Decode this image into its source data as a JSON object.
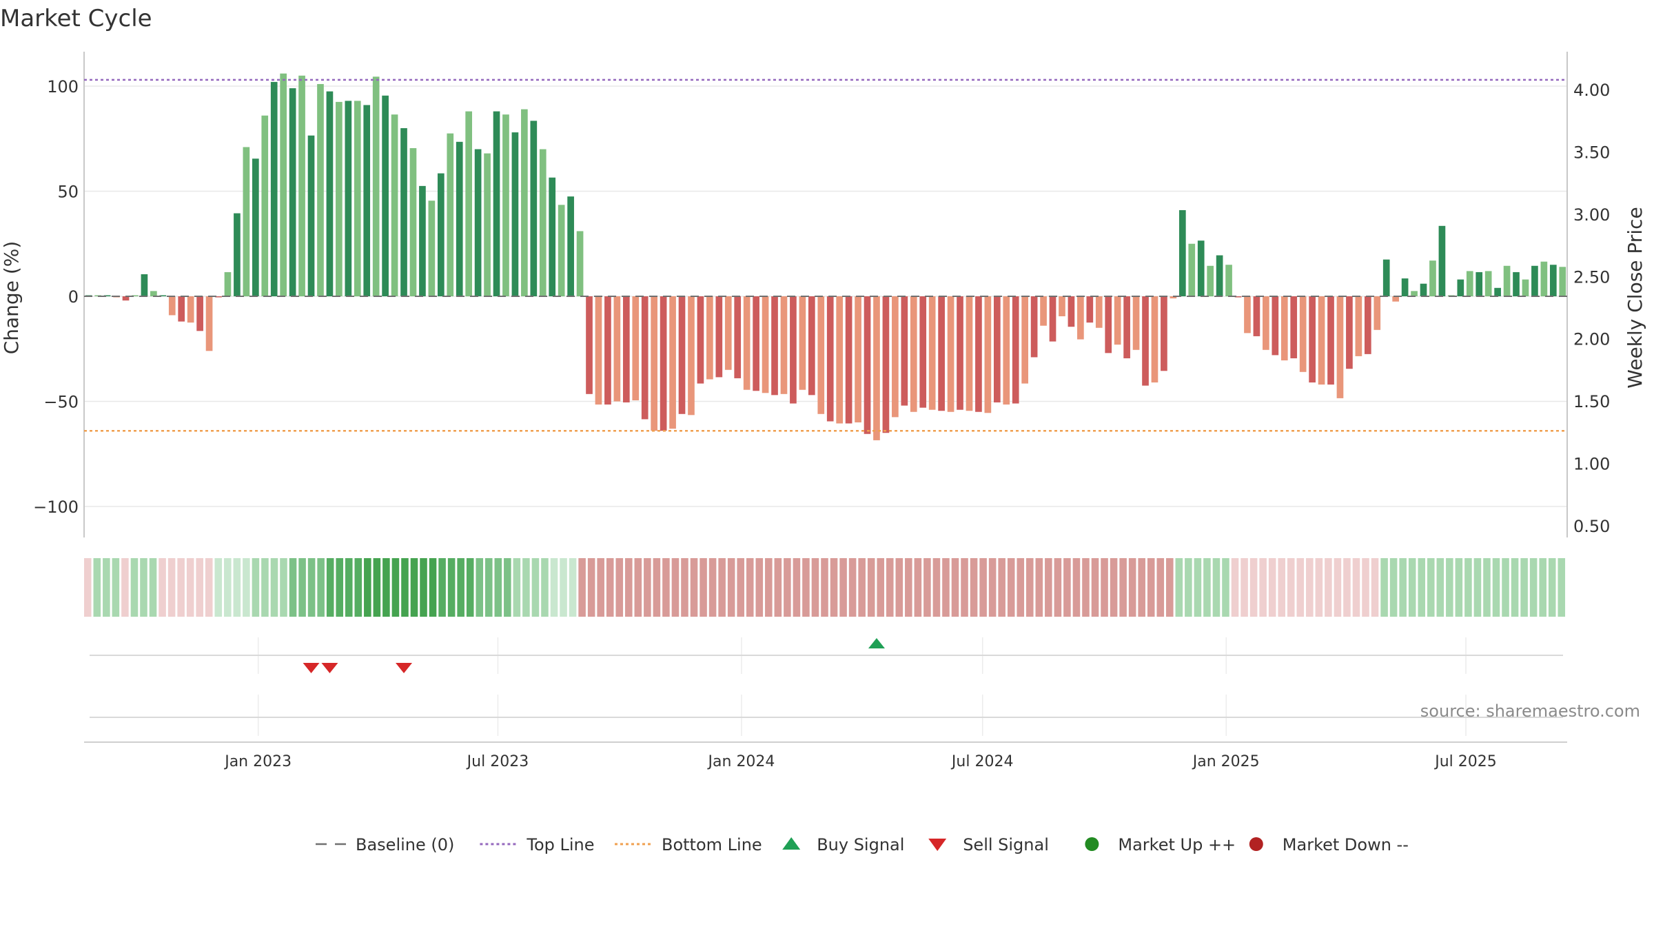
{
  "title": "Market Cycle",
  "source_text": "source: sharemaestro.com",
  "colors": {
    "top_line": "#9467bd",
    "bottom_line": "#f0a050",
    "up_strong": "#2e8b57",
    "up_light": "#80c080",
    "down_strong": "#cd5c5c",
    "down_light": "#e9967a",
    "buy": "#1fa055",
    "sell": "#d62728",
    "market_up": "#228b22",
    "market_down": "#b22222",
    "baseline": "#707070"
  },
  "chart_data": {
    "type": "bar",
    "title": "Market Cycle",
    "ylabel_left": "Change (%)",
    "ylabel_right": "Weekly Close Price",
    "ylim_left": [
      -115,
      115
    ],
    "ylim_right": [
      0.45,
      4.2
    ],
    "yticks_left": [
      "100",
      "50",
      "0",
      "−50",
      "−100"
    ],
    "yticks_left_values": [
      100,
      50,
      0,
      -50,
      -100
    ],
    "yticks_right": [
      "4.00",
      "3.50",
      "3.00",
      "2.50",
      "2.00",
      "1.50",
      "1.00",
      "0.50"
    ],
    "yticks_right_values": [
      4.0,
      3.5,
      3.0,
      2.5,
      2.0,
      1.5,
      1.0,
      0.5
    ],
    "xticks": [
      "Jan 2023",
      "Jul 2023",
      "Jan 2024",
      "Jul 2024",
      "Jan 2025",
      "Jul 2025"
    ],
    "xticks_dates": [
      "2023-01-01",
      "2023-07-01",
      "2024-01-01",
      "2024-07-01",
      "2025-01-01",
      "2025-07-01"
    ],
    "start_date": "2022-08-26",
    "week_step_days": 7,
    "top_line": 103,
    "bottom_line": -64,
    "grid": true,
    "legend_position": "bottom-center",
    "legend": [
      {
        "label": "Baseline (0)",
        "marker": "dash"
      },
      {
        "label": "Top Line",
        "marker": "dotted-purple"
      },
      {
        "label": "Bottom Line",
        "marker": "dotted-orange"
      },
      {
        "label": "Buy Signal",
        "marker": "triangle-up"
      },
      {
        "label": "Sell Signal",
        "marker": "triangle-down"
      },
      {
        "label": "Market Up ++",
        "marker": "circle-green"
      },
      {
        "label": "Market Down --",
        "marker": "circle-red"
      }
    ],
    "weekly_change": [
      0.5,
      0.5,
      0.5,
      -0.5,
      -2,
      0.5,
      10.5,
      2.5,
      0.5,
      -9,
      -12,
      -12.5,
      -16.5,
      -26,
      -0.5,
      11.5,
      39.5,
      71,
      65.5,
      86,
      102,
      106,
      99,
      105,
      76.5,
      101,
      97.5,
      92.5,
      93,
      93,
      91,
      104.5,
      95.5,
      86.5,
      80,
      70.5,
      52.5,
      45.5,
      58.5,
      77.5,
      73.5,
      88,
      70,
      68,
      88,
      86.5,
      78,
      89,
      83.5,
      70,
      56.5,
      43.5,
      47.5,
      31,
      -46.5,
      -51.5,
      -51.5,
      -50,
      -50.5,
      -49.5,
      -58.5,
      -64,
      -64,
      -63,
      -56,
      -56.5,
      -41.5,
      -39.5,
      -38.5,
      -35,
      -39,
      -44.5,
      -45,
      -46,
      -47,
      -46.5,
      -51,
      -44.5,
      -47,
      -56,
      -59.5,
      -60.5,
      -60.5,
      -60,
      -65.5,
      -68.5,
      -65,
      -57.5,
      -52,
      -55,
      -53,
      -54,
      -54.5,
      -55,
      -54,
      -54.5,
      -55,
      -55.5,
      -50.5,
      -51.5,
      -51,
      -41.5,
      -29,
      -14,
      -21.5,
      -9.5,
      -14.5,
      -20.5,
      -12.5,
      -15,
      -27,
      -23,
      -29.5,
      -25.5,
      -42.5,
      -41,
      -35.5,
      -1,
      41,
      25,
      26.5,
      14.5,
      19.5,
      15,
      -0.5,
      -17.5,
      -19,
      -25.5,
      -28,
      -30.5,
      -29.5,
      -36,
      -41,
      -42,
      -42,
      -48.5,
      -34.5,
      -28.5,
      -27.5,
      -16,
      17.5,
      -2.5,
      8.5,
      2.5,
      6,
      17,
      33.5,
      0.5,
      8,
      12,
      11.5,
      12,
      4,
      14.5,
      11.5,
      8,
      14.5,
      16.5,
      15,
      14
    ],
    "status_strip": [
      {
        "state": "down",
        "weeks": 1
      },
      {
        "state": "up",
        "weeks": 3
      },
      {
        "state": "down",
        "weeks": 1
      },
      {
        "state": "up",
        "weeks": 3
      },
      {
        "state": "down",
        "weeks": 6
      },
      {
        "state": "up",
        "weeks": 39
      },
      {
        "state": "down",
        "weeks": 64
      },
      {
        "state": "up",
        "weeks": 6
      },
      {
        "state": "down",
        "weeks": 16
      },
      {
        "state": "up",
        "weeks": 7
      },
      {
        "state": "up",
        "weeks": 13
      }
    ],
    "buy_signals": [
      {
        "x": "2024-04-12"
      }
    ],
    "sell_signals": [
      {
        "x": "2023-02-10"
      },
      {
        "x": "2023-02-24"
      },
      {
        "x": "2023-04-21"
      }
    ]
  }
}
